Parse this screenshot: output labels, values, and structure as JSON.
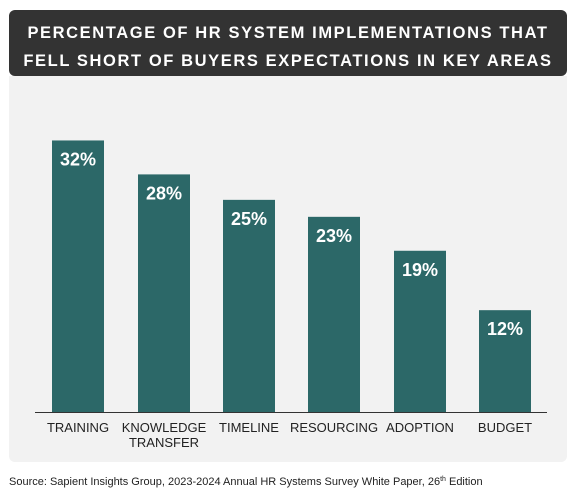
{
  "header": {
    "title_line1": "PERCENTAGE OF HR SYSTEM IMPLEMENTATIONS THAT",
    "title_line2": "FELL SHORT OF BUYERS EXPECTATIONS IN KEY AREAS"
  },
  "chart_data": {
    "type": "bar",
    "title": "PERCENTAGE OF HR SYSTEM IMPLEMENTATIONS THAT FELL SHORT OF BUYERS EXPECTATIONS IN KEY AREAS",
    "categories": [
      [
        "TRAINING"
      ],
      [
        "KNOWLEDGE",
        "TRANSFER"
      ],
      [
        "TIMELINE"
      ],
      [
        "RESOURCING"
      ],
      [
        "ADOPTION"
      ],
      [
        "BUDGET"
      ]
    ],
    "values": [
      32,
      28,
      25,
      23,
      19,
      12
    ],
    "data_labels": [
      "32%",
      "28%",
      "25%",
      "23%",
      "19%",
      "12%"
    ],
    "unit": "%",
    "ylim": [
      0,
      35
    ],
    "grid": false,
    "legend": "none",
    "bar_color": "#2c6868",
    "background_color": "#f2f2f2"
  },
  "footer": {
    "source_main": "Source: Sapient Insights Group, 2023-2024 Annual HR Systems Survey White Paper, 26",
    "source_sup": "th",
    "source_tail": " Edition"
  }
}
